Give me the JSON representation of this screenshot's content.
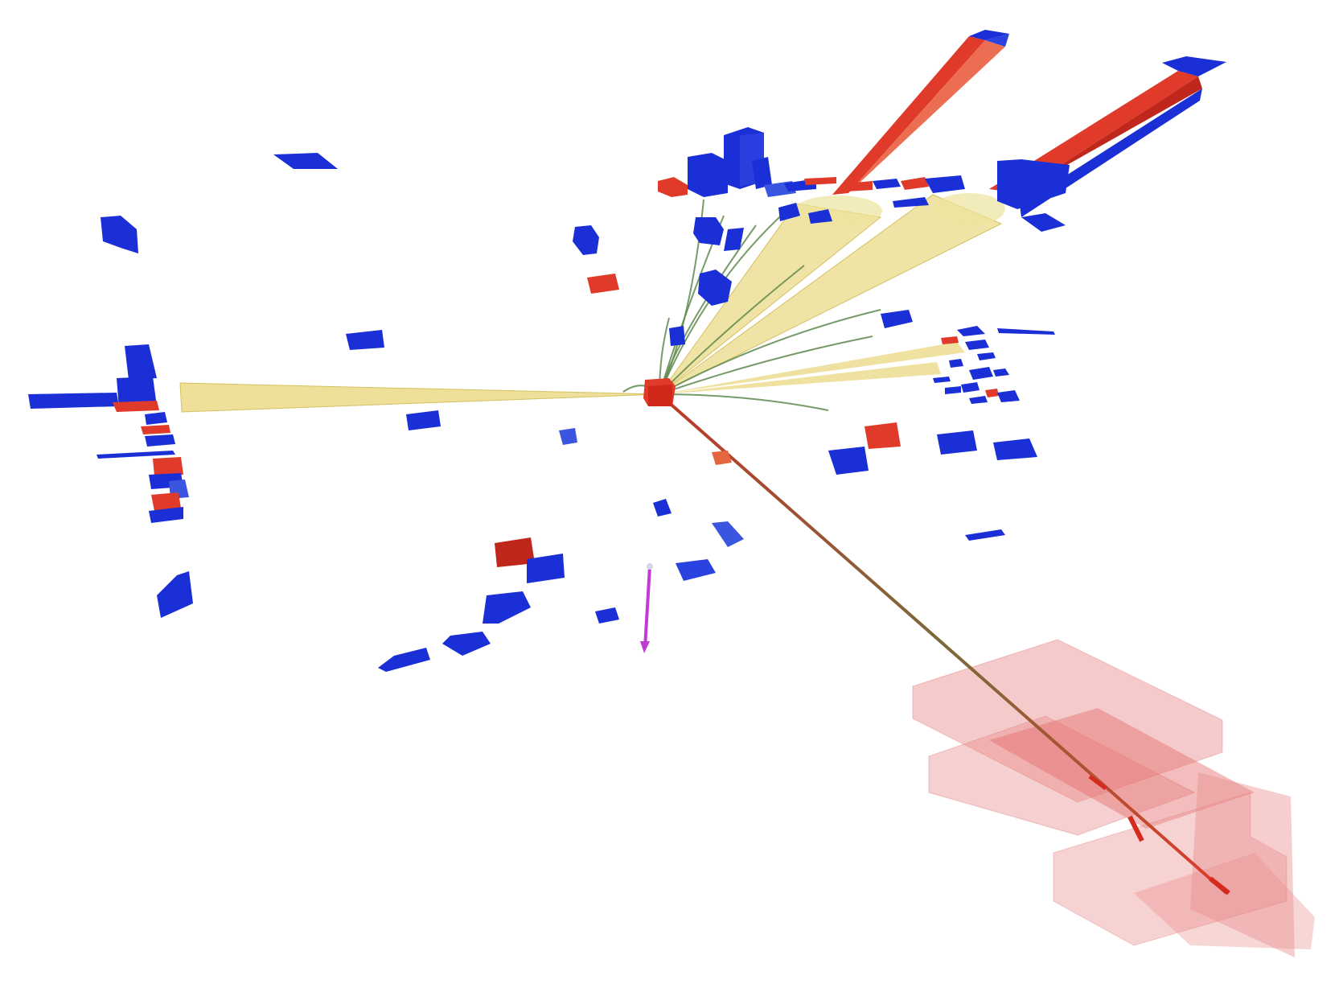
{
  "scene": {
    "background_color": "#ffffff",
    "colors": {
      "deposit_blue": "#1a2fd6",
      "deposit_red": "#e03a2a",
      "jet_cone_yellow": "#e8d477",
      "track_green": "#5f8a4d",
      "muon_chamber_pink": "#e98a8a",
      "missing_energy_magenta": "#c23ad6"
    },
    "object_kinds": [
      "vertex",
      "jet-cone",
      "charged-track",
      "muon-track",
      "calorimeter-tower",
      "muon-chamber",
      "missing-energy-arrow"
    ]
  }
}
